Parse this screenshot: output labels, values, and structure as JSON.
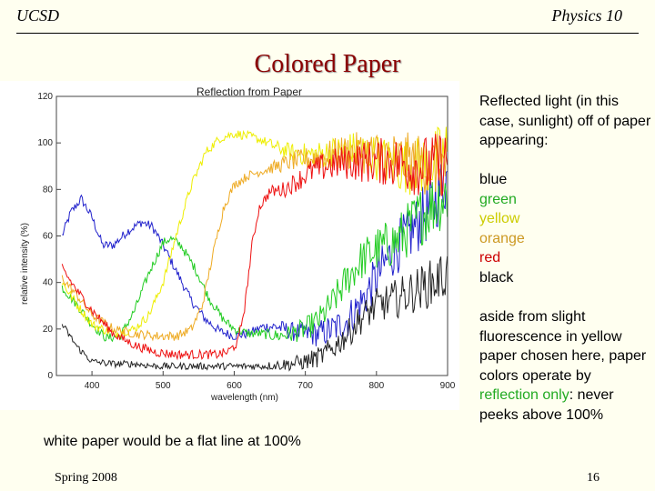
{
  "header": {
    "left": "UCSD",
    "right": "Physics 10"
  },
  "slide_title": "Colored Paper",
  "chart_data": {
    "type": "line",
    "title": "Reflection from Paper",
    "xlabel": "wavelength (nm)",
    "ylabel": "relative intensity (%)",
    "xlim": [
      350,
      900
    ],
    "ylim": [
      0,
      120
    ],
    "xticks": [
      400,
      500,
      600,
      700,
      800,
      900
    ],
    "yticks": [
      0,
      20,
      40,
      60,
      80,
      100,
      120
    ],
    "grid": false,
    "series": [
      {
        "name": "blue",
        "color": "#2222cc",
        "noise": 2,
        "points": [
          [
            358,
            60
          ],
          [
            370,
            70
          ],
          [
            385,
            76
          ],
          [
            400,
            68
          ],
          [
            415,
            56
          ],
          [
            430,
            56
          ],
          [
            450,
            62
          ],
          [
            470,
            66
          ],
          [
            485,
            64
          ],
          [
            500,
            56
          ],
          [
            520,
            44
          ],
          [
            540,
            32
          ],
          [
            560,
            24
          ],
          [
            580,
            19
          ],
          [
            600,
            17
          ],
          [
            620,
            18
          ],
          [
            640,
            21
          ],
          [
            660,
            21
          ],
          [
            680,
            19
          ],
          [
            700,
            18
          ],
          [
            720,
            18
          ],
          [
            740,
            20
          ],
          [
            760,
            24
          ],
          [
            780,
            32
          ],
          [
            800,
            42
          ],
          [
            820,
            52
          ],
          [
            850,
            62
          ],
          [
            880,
            74
          ],
          [
            900,
            86
          ]
        ]
      },
      {
        "name": "green",
        "color": "#22cc22",
        "noise": 2,
        "points": [
          [
            358,
            38
          ],
          [
            380,
            30
          ],
          [
            400,
            22
          ],
          [
            420,
            16
          ],
          [
            440,
            17
          ],
          [
            460,
            28
          ],
          [
            480,
            44
          ],
          [
            500,
            57
          ],
          [
            510,
            59
          ],
          [
            525,
            56
          ],
          [
            545,
            46
          ],
          [
            565,
            33
          ],
          [
            585,
            24
          ],
          [
            600,
            20
          ],
          [
            620,
            18
          ],
          [
            640,
            18
          ],
          [
            660,
            17
          ],
          [
            680,
            18
          ],
          [
            700,
            20
          ],
          [
            720,
            24
          ],
          [
            740,
            32
          ],
          [
            760,
            42
          ],
          [
            780,
            50
          ],
          [
            800,
            54
          ],
          [
            830,
            58
          ],
          [
            860,
            68
          ],
          [
            880,
            74
          ],
          [
            900,
            78
          ]
        ]
      },
      {
        "name": "yellow",
        "color": "#eeee00",
        "noise": 2,
        "points": [
          [
            358,
            40
          ],
          [
            380,
            30
          ],
          [
            400,
            22
          ],
          [
            430,
            18
          ],
          [
            460,
            20
          ],
          [
            480,
            26
          ],
          [
            500,
            40
          ],
          [
            520,
            62
          ],
          [
            540,
            82
          ],
          [
            560,
            96
          ],
          [
            580,
            102
          ],
          [
            600,
            104
          ],
          [
            620,
            103
          ],
          [
            640,
            101
          ],
          [
            660,
            98
          ],
          [
            680,
            96
          ],
          [
            700,
            95
          ],
          [
            720,
            95
          ],
          [
            740,
            96
          ],
          [
            760,
            97
          ],
          [
            780,
            96
          ],
          [
            800,
            94
          ],
          [
            830,
            90
          ],
          [
            860,
            90
          ],
          [
            880,
            92
          ],
          [
            900,
            96
          ]
        ]
      },
      {
        "name": "orange",
        "color": "#eeaa22",
        "noise": 2,
        "points": [
          [
            358,
            42
          ],
          [
            380,
            34
          ],
          [
            400,
            26
          ],
          [
            430,
            20
          ],
          [
            460,
            18
          ],
          [
            490,
            17
          ],
          [
            520,
            17
          ],
          [
            540,
            20
          ],
          [
            555,
            30
          ],
          [
            570,
            52
          ],
          [
            585,
            72
          ],
          [
            600,
            82
          ],
          [
            620,
            86
          ],
          [
            640,
            88
          ],
          [
            660,
            90
          ],
          [
            680,
            92
          ],
          [
            700,
            93
          ],
          [
            720,
            94
          ],
          [
            740,
            95
          ],
          [
            760,
            96
          ],
          [
            790,
            96
          ],
          [
            820,
            94
          ],
          [
            850,
            92
          ],
          [
            880,
            90
          ],
          [
            900,
            90
          ]
        ]
      },
      {
        "name": "red",
        "color": "#ee1111",
        "noise": 2,
        "points": [
          [
            358,
            46
          ],
          [
            380,
            36
          ],
          [
            400,
            28
          ],
          [
            430,
            18
          ],
          [
            460,
            13
          ],
          [
            490,
            10
          ],
          [
            520,
            9
          ],
          [
            550,
            9
          ],
          [
            575,
            9
          ],
          [
            590,
            10
          ],
          [
            605,
            14
          ],
          [
            615,
            30
          ],
          [
            625,
            56
          ],
          [
            635,
            72
          ],
          [
            650,
            79
          ],
          [
            670,
            80
          ],
          [
            690,
            84
          ],
          [
            710,
            88
          ],
          [
            730,
            90
          ],
          [
            760,
            92
          ],
          [
            790,
            92
          ],
          [
            820,
            92
          ],
          [
            850,
            90
          ],
          [
            880,
            90
          ],
          [
            900,
            92
          ]
        ]
      },
      {
        "name": "black",
        "color": "#222222",
        "noise": 1.5,
        "points": [
          [
            358,
            22
          ],
          [
            380,
            12
          ],
          [
            400,
            6
          ],
          [
            430,
            5
          ],
          [
            460,
            5
          ],
          [
            490,
            4
          ],
          [
            520,
            4
          ],
          [
            560,
            4
          ],
          [
            600,
            4
          ],
          [
            640,
            4
          ],
          [
            680,
            5
          ],
          [
            700,
            6
          ],
          [
            720,
            8
          ],
          [
            740,
            12
          ],
          [
            760,
            18
          ],
          [
            780,
            25
          ],
          [
            800,
            30
          ],
          [
            820,
            32
          ],
          [
            850,
            36
          ],
          [
            880,
            40
          ],
          [
            900,
            44
          ]
        ]
      }
    ]
  },
  "caption": "white paper would be a flat line at 100%",
  "right_panel": {
    "intro": "Reflected light (in this case, sunlight) off of paper appearing:",
    "color_words": [
      {
        "text": "blue",
        "color": "#000000"
      },
      {
        "text": "green",
        "color": "#22aa22"
      },
      {
        "text": "yellow",
        "color": "#cccc00"
      },
      {
        "text": "orange",
        "color": "#cc9922"
      },
      {
        "text": "red",
        "color": "#cc0000"
      },
      {
        "text": "black",
        "color": "#000000"
      }
    ],
    "note_pre": "aside from slight fluorescence in yellow paper chosen here, paper colors operate by ",
    "note_highlight": "reflection only",
    "note_post": ": never peeks above 100%",
    "highlight_color": "#22aa22"
  },
  "footer": {
    "left": "Spring 2008",
    "right": "16"
  }
}
